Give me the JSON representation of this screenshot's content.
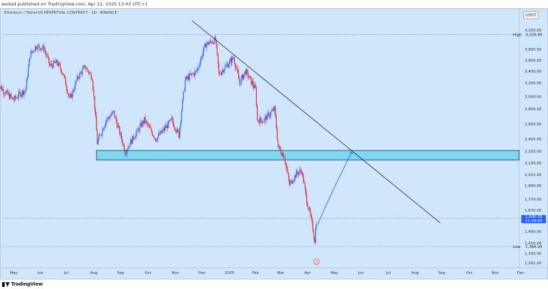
{
  "publication": "wedad published on TradingView.com, Apr 12, 2025 13:43 UTC+1",
  "symbol_header": "Ethereum / TetherUS PERPETUAL CONTRACT · 1D · BINANCE",
  "currency": "USDT",
  "footer_brand": "TradingView",
  "event_marker": "5",
  "colors": {
    "background": "#cfe6fb",
    "up_candle": "#2962ff",
    "down_candle": "#e8252e",
    "zone_fill": "#66d2f2",
    "zone_border": "#1b2f4a",
    "trendline": "#131722",
    "projection_arrow": "#2962ff",
    "price_tag": "#2962ff"
  },
  "chart_data": {
    "type": "candlestick",
    "x_axis_labels": [
      "May",
      "Jun",
      "Jul",
      "Aug",
      "Sep",
      "Oct",
      "Nov",
      "Dec",
      "2025",
      "Feb",
      "Mar",
      "Apr",
      "May",
      "Jun",
      "Jul",
      "Aug",
      "Sep",
      "Oct",
      "Nov",
      "Dec"
    ],
    "y_axis_labels": [
      "4,200.00",
      "3,800.00",
      "3,600.00",
      "3,400.00",
      "3,200.00",
      "3,000.00",
      "2,800.00",
      "2,600.00",
      "2,400.00",
      "2,250.00",
      "2,130.00",
      "2,010.00",
      "1,890.00",
      "1,770.00",
      "1,670.00",
      "1,490.00",
      "1,410.00",
      "1,330.00",
      "1,262.00"
    ],
    "high": {
      "label": "High",
      "value": "4,109.99"
    },
    "low": {
      "label": "Low",
      "value": "1,384.00"
    },
    "last_price": {
      "value": "1,600.78",
      "countdown": "11:18:09"
    },
    "support_zone": {
      "top": 2260,
      "bottom": 2160
    },
    "trendline": {
      "from": {
        "date": "2024-12-05",
        "price": 4200
      },
      "to": {
        "date": "2025-08-15",
        "price": 1540
      }
    },
    "projection": {
      "from": {
        "date": "2025-04-10",
        "price": 1500
      },
      "to": {
        "date": "2025-05-15",
        "price": 2250
      }
    },
    "price_path": [
      [
        "2024-04-12",
        3190
      ],
      [
        "2024-04-22",
        3050
      ],
      [
        "2024-05-01",
        2950
      ],
      [
        "2024-05-09",
        3050
      ],
      [
        "2024-05-15",
        3100
      ],
      [
        "2024-05-20",
        3700
      ],
      [
        "2024-05-27",
        3870
      ],
      [
        "2024-06-05",
        3820
      ],
      [
        "2024-06-12",
        3500
      ],
      [
        "2024-06-20",
        3560
      ],
      [
        "2024-06-26",
        3400
      ],
      [
        "2024-07-05",
        2950
      ],
      [
        "2024-07-14",
        3300
      ],
      [
        "2024-07-22",
        3480
      ],
      [
        "2024-07-30",
        3300
      ],
      [
        "2024-08-05",
        2350
      ],
      [
        "2024-08-15",
        2650
      ],
      [
        "2024-08-24",
        2750
      ],
      [
        "2024-09-06",
        2250
      ],
      [
        "2024-09-15",
        2420
      ],
      [
        "2024-09-27",
        2650
      ],
      [
        "2024-10-10",
        2400
      ],
      [
        "2024-10-28",
        2650
      ],
      [
        "2024-11-05",
        2450
      ],
      [
        "2024-11-12",
        3250
      ],
      [
        "2024-11-25",
        3400
      ],
      [
        "2024-12-05",
        3900
      ],
      [
        "2024-12-16",
        4000
      ],
      [
        "2024-12-20",
        3350
      ],
      [
        "2025-01-06",
        3650
      ],
      [
        "2025-01-13",
        3200
      ],
      [
        "2025-01-20",
        3400
      ],
      [
        "2025-02-01",
        3100
      ],
      [
        "2025-02-03",
        2650
      ],
      [
        "2025-02-10",
        2650
      ],
      [
        "2025-02-22",
        2800
      ],
      [
        "2025-02-26",
        2300
      ],
      [
        "2025-03-05",
        2200
      ],
      [
        "2025-03-11",
        1900
      ],
      [
        "2025-03-19",
        2020
      ],
      [
        "2025-03-25",
        2050
      ],
      [
        "2025-03-30",
        1800
      ],
      [
        "2025-04-06",
        1550
      ],
      [
        "2025-04-09",
        1430
      ],
      [
        "2025-04-11",
        1580
      ]
    ]
  }
}
